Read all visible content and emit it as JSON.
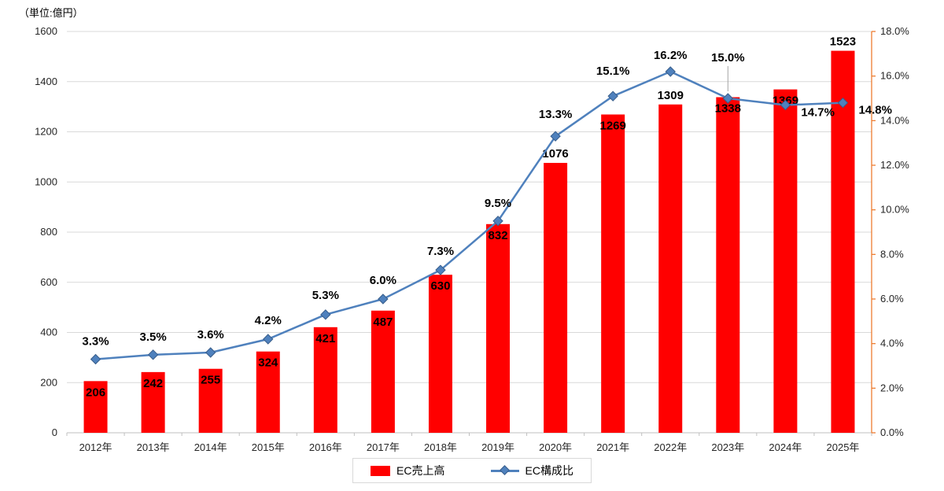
{
  "chart_data": {
    "type": "combo",
    "unit_label": "（単位:億円）",
    "categories": [
      "2012年",
      "2013年",
      "2014年",
      "2015年",
      "2016年",
      "2017年",
      "2018年",
      "2019年",
      "2020年",
      "2021年",
      "2022年",
      "2023年",
      "2024年",
      "2025年"
    ],
    "series": [
      {
        "name": "EC売上高",
        "type": "bar",
        "axis": "left",
        "color": "#FF0000",
        "values": [
          206,
          242,
          255,
          324,
          421,
          487,
          630,
          832,
          1076,
          1269,
          1309,
          1338,
          1369,
          1523
        ]
      },
      {
        "name": "EC構成比",
        "type": "line",
        "axis": "right",
        "color": "#4F81BD",
        "marker_stroke": "#385D8A",
        "values": [
          3.3,
          3.5,
          3.6,
          4.2,
          5.3,
          6.0,
          7.3,
          9.5,
          13.3,
          15.1,
          16.2,
          15.0,
          14.7,
          14.8
        ]
      }
    ],
    "left_axis": {
      "min": 0,
      "max": 1600,
      "step": 200
    },
    "right_axis": {
      "min": 0,
      "max": 18,
      "step": 2,
      "suffix": "%",
      "decimals": 1,
      "color": "#ED7D31"
    },
    "grid_color": "#D9D9D9",
    "axis_line_color": "#BFBFBF",
    "tick_label_color": "#262626",
    "legend_position": "bottom",
    "bar_label_mode": [
      "inside",
      "inside",
      "inside",
      "inside",
      "inside",
      "inside",
      "inside",
      "inside",
      "above",
      "inside",
      "above",
      "inside",
      "inside",
      "above"
    ],
    "pct_label_mode": [
      "above",
      "above",
      "above",
      "above",
      "above",
      "above",
      "above",
      "above",
      "above",
      "above",
      "above",
      "above",
      "right",
      "right"
    ],
    "pct_label_dy": [
      -18,
      -18,
      -18,
      -19,
      -20,
      -19,
      -19,
      -18,
      -23,
      -27,
      -16,
      -47,
      14,
      14
    ]
  }
}
